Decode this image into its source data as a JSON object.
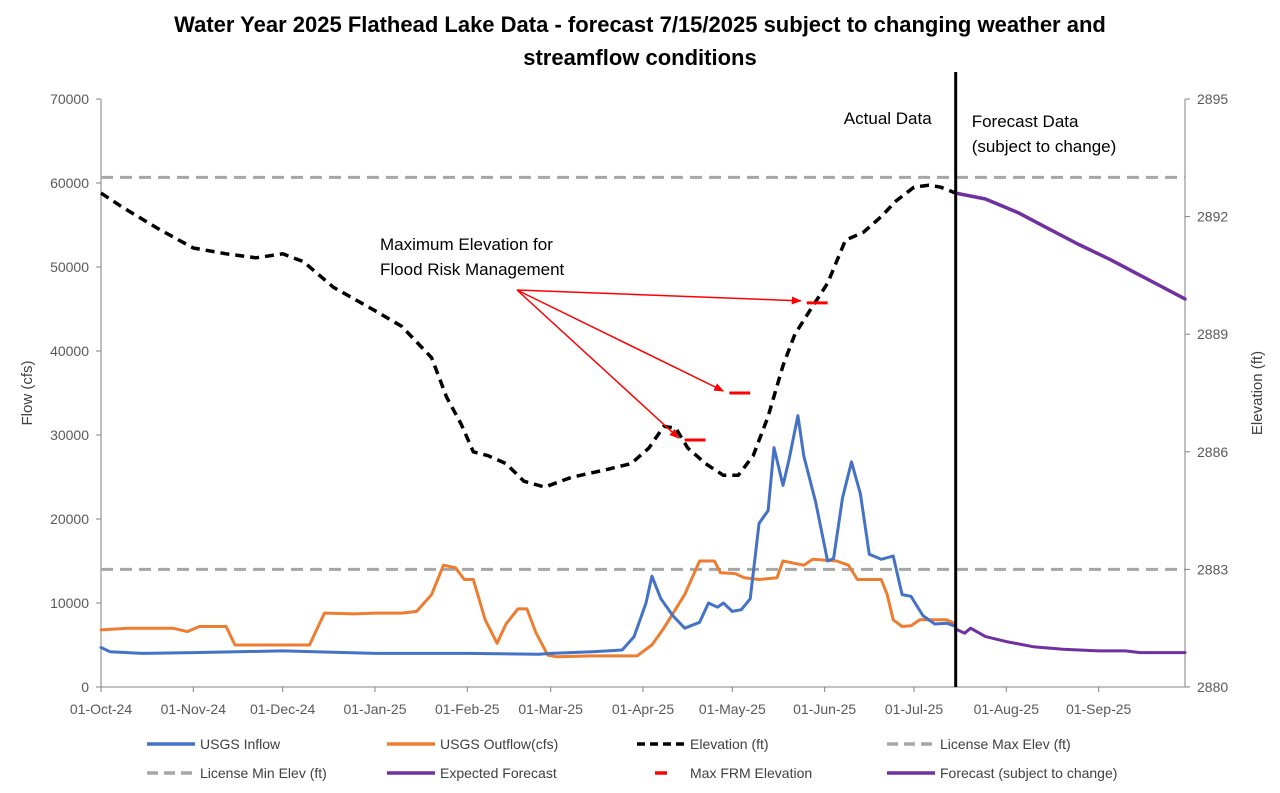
{
  "chart_data": {
    "type": "line",
    "title_line1": "Water Year 2025 Flathead Lake Data - forecast 7/15/2025 subject to changing weather and",
    "title_line2": "streamflow conditions",
    "ylabel_left": "Flow (cfs)",
    "ylabel_right": "Elevation (ft)",
    "y_left": {
      "min": 0,
      "max": 70000,
      "ticks": [
        0,
        10000,
        20000,
        30000,
        40000,
        50000,
        60000,
        70000
      ]
    },
    "y_right": {
      "min": 2880,
      "max": 2895,
      "ticks": [
        2880,
        2883,
        2886,
        2889,
        2892,
        2895
      ]
    },
    "x_range": [
      "2024-10-01",
      "2025-09-30"
    ],
    "x_ticks": [
      {
        "date": "2024-10-01",
        "label": "01-Oct-24"
      },
      {
        "date": "2024-11-01",
        "label": "01-Nov-24"
      },
      {
        "date": "2024-12-01",
        "label": "01-Dec-24"
      },
      {
        "date": "2025-01-01",
        "label": "01-Jan-25"
      },
      {
        "date": "2025-02-01",
        "label": "01-Feb-25"
      },
      {
        "date": "2025-03-01",
        "label": "01-Mar-25"
      },
      {
        "date": "2025-04-01",
        "label": "01-Apr-25"
      },
      {
        "date": "2025-05-01",
        "label": "01-May-25"
      },
      {
        "date": "2025-06-01",
        "label": "01-Jun-25"
      },
      {
        "date": "2025-07-01",
        "label": "01-Jul-25"
      },
      {
        "date": "2025-08-01",
        "label": "01-Aug-25"
      },
      {
        "date": "2025-09-01",
        "label": "01-Sep-25"
      }
    ],
    "grid": false,
    "legend_position": "bottom",
    "split_date": "2025-07-15",
    "region_labels": {
      "actual": "Actual Data",
      "forecast_line1": "Forecast Data",
      "forecast_line2": "(subject to change)"
    },
    "annotation": {
      "line1": "Maximum Elevation for",
      "line2": "Flood Risk Management"
    },
    "colors": {
      "inflow": "#4472C4",
      "outflow": "#ED7D31",
      "elevation": "#000000",
      "license": "#A6A6A6",
      "forecast": "#7030A0",
      "frm": "#FF0000"
    },
    "license_max_elev": 2893.0,
    "license_min_elev": 2883.0,
    "series": [
      {
        "key": "inflow",
        "name": "USGS Inflow",
        "axis": "left",
        "points": [
          [
            "2024-10-01",
            4700
          ],
          [
            "2024-10-04",
            4200
          ],
          [
            "2024-10-15",
            4000
          ],
          [
            "2024-11-01",
            4100
          ],
          [
            "2024-12-01",
            4300
          ],
          [
            "2025-01-01",
            4000
          ],
          [
            "2025-02-01",
            4000
          ],
          [
            "2025-02-25",
            3900
          ],
          [
            "2025-03-01",
            4000
          ],
          [
            "2025-03-15",
            4200
          ],
          [
            "2025-03-25",
            4400
          ],
          [
            "2025-03-29",
            6000
          ],
          [
            "2025-04-02",
            10000
          ],
          [
            "2025-04-04",
            13200
          ],
          [
            "2025-04-07",
            10500
          ],
          [
            "2025-04-11",
            8500
          ],
          [
            "2025-04-15",
            7000
          ],
          [
            "2025-04-20",
            7700
          ],
          [
            "2025-04-23",
            10000
          ],
          [
            "2025-04-26",
            9500
          ],
          [
            "2025-04-28",
            10000
          ],
          [
            "2025-05-01",
            9000
          ],
          [
            "2025-05-04",
            9200
          ],
          [
            "2025-05-07",
            10500
          ],
          [
            "2025-05-10",
            19500
          ],
          [
            "2025-05-13",
            21000
          ],
          [
            "2025-05-15",
            28500
          ],
          [
            "2025-05-18",
            24000
          ],
          [
            "2025-05-20",
            27000
          ],
          [
            "2025-05-23",
            32300
          ],
          [
            "2025-05-25",
            27500
          ],
          [
            "2025-05-29",
            22000
          ],
          [
            "2025-06-02",
            15000
          ],
          [
            "2025-06-04",
            15300
          ],
          [
            "2025-06-07",
            22500
          ],
          [
            "2025-06-10",
            26800
          ],
          [
            "2025-06-13",
            23000
          ],
          [
            "2025-06-16",
            15800
          ],
          [
            "2025-06-20",
            15200
          ],
          [
            "2025-06-24",
            15600
          ],
          [
            "2025-06-27",
            11000
          ],
          [
            "2025-06-30",
            10800
          ],
          [
            "2025-07-04",
            8500
          ],
          [
            "2025-07-08",
            7500
          ],
          [
            "2025-07-12",
            7600
          ],
          [
            "2025-07-15",
            7200
          ]
        ]
      },
      {
        "key": "outflow",
        "name": "USGS Outflow(cfs)",
        "axis": "left",
        "points": [
          [
            "2024-10-01",
            6800
          ],
          [
            "2024-10-10",
            7000
          ],
          [
            "2024-10-25",
            7000
          ],
          [
            "2024-10-30",
            6600
          ],
          [
            "2024-11-03",
            7200
          ],
          [
            "2024-11-12",
            7200
          ],
          [
            "2024-11-15",
            5000
          ],
          [
            "2024-11-25",
            5000
          ],
          [
            "2024-12-01",
            5000
          ],
          [
            "2024-12-10",
            5000
          ],
          [
            "2024-12-15",
            8800
          ],
          [
            "2024-12-25",
            8700
          ],
          [
            "2025-01-01",
            8800
          ],
          [
            "2025-01-10",
            8800
          ],
          [
            "2025-01-15",
            9000
          ],
          [
            "2025-01-20",
            11000
          ],
          [
            "2025-01-24",
            14500
          ],
          [
            "2025-01-28",
            14200
          ],
          [
            "2025-01-31",
            12800
          ],
          [
            "2025-02-03",
            12800
          ],
          [
            "2025-02-07",
            8000
          ],
          [
            "2025-02-11",
            5200
          ],
          [
            "2025-02-14",
            7500
          ],
          [
            "2025-02-18",
            9300
          ],
          [
            "2025-02-21",
            9300
          ],
          [
            "2025-02-24",
            6500
          ],
          [
            "2025-02-28",
            3800
          ],
          [
            "2025-03-03",
            3600
          ],
          [
            "2025-03-15",
            3700
          ],
          [
            "2025-03-30",
            3700
          ],
          [
            "2025-04-04",
            5000
          ],
          [
            "2025-04-08",
            7000
          ],
          [
            "2025-04-15",
            11000
          ],
          [
            "2025-04-20",
            15000
          ],
          [
            "2025-04-25",
            15000
          ],
          [
            "2025-04-27",
            13600
          ],
          [
            "2025-05-02",
            13500
          ],
          [
            "2025-05-05",
            13000
          ],
          [
            "2025-05-10",
            12800
          ],
          [
            "2025-05-16",
            13000
          ],
          [
            "2025-05-18",
            15000
          ],
          [
            "2025-05-25",
            14500
          ],
          [
            "2025-05-28",
            15200
          ],
          [
            "2025-06-05",
            15000
          ],
          [
            "2025-06-09",
            14500
          ],
          [
            "2025-06-12",
            12800
          ],
          [
            "2025-06-20",
            12800
          ],
          [
            "2025-06-22",
            11000
          ],
          [
            "2025-06-24",
            8000
          ],
          [
            "2025-06-27",
            7200
          ],
          [
            "2025-06-30",
            7300
          ],
          [
            "2025-07-03",
            8000
          ],
          [
            "2025-07-12",
            8000
          ],
          [
            "2025-07-15",
            7500
          ]
        ]
      },
      {
        "key": "elevation",
        "name": "Elevation (ft)",
        "axis": "right",
        "points": [
          [
            "2024-10-01",
            2892.6
          ],
          [
            "2024-10-08",
            2892.25
          ],
          [
            "2024-10-20",
            2891.7
          ],
          [
            "2024-11-01",
            2891.2
          ],
          [
            "2024-11-12",
            2891.05
          ],
          [
            "2024-11-22",
            2890.95
          ],
          [
            "2024-12-01",
            2891.05
          ],
          [
            "2024-12-08",
            2890.85
          ],
          [
            "2024-12-18",
            2890.2
          ],
          [
            "2025-01-01",
            2889.6
          ],
          [
            "2025-01-10",
            2889.2
          ],
          [
            "2025-01-20",
            2888.4
          ],
          [
            "2025-01-25",
            2887.4
          ],
          [
            "2025-01-30",
            2886.7
          ],
          [
            "2025-02-03",
            2886.0
          ],
          [
            "2025-02-08",
            2885.9
          ],
          [
            "2025-02-14",
            2885.7
          ],
          [
            "2025-02-20",
            2885.25
          ],
          [
            "2025-02-27",
            2885.1
          ],
          [
            "2025-03-08",
            2885.35
          ],
          [
            "2025-03-20",
            2885.55
          ],
          [
            "2025-03-28",
            2885.7
          ],
          [
            "2025-04-03",
            2886.1
          ],
          [
            "2025-04-08",
            2886.65
          ],
          [
            "2025-04-12",
            2886.6
          ],
          [
            "2025-04-16",
            2886.1
          ],
          [
            "2025-04-22",
            2885.7
          ],
          [
            "2025-04-28",
            2885.4
          ],
          [
            "2025-05-03",
            2885.4
          ],
          [
            "2025-05-08",
            2885.9
          ],
          [
            "2025-05-13",
            2886.9
          ],
          [
            "2025-05-18",
            2888.2
          ],
          [
            "2025-05-22",
            2889.0
          ],
          [
            "2025-05-27",
            2889.6
          ],
          [
            "2025-06-02",
            2890.3
          ],
          [
            "2025-06-08",
            2891.4
          ],
          [
            "2025-06-14",
            2891.6
          ],
          [
            "2025-06-20",
            2892.0
          ],
          [
            "2025-06-25",
            2892.4
          ],
          [
            "2025-07-01",
            2892.75
          ],
          [
            "2025-07-06",
            2892.8
          ],
          [
            "2025-07-10",
            2892.75
          ],
          [
            "2025-07-15",
            2892.6
          ]
        ]
      },
      {
        "key": "license_max",
        "name": "License Max Elev (ft)",
        "axis": "right",
        "points": [
          [
            "2024-10-01",
            2893.0
          ],
          [
            "2025-09-30",
            2893.0
          ]
        ]
      },
      {
        "key": "license_min",
        "name": "License Min Elev (ft)",
        "axis": "right",
        "points": [
          [
            "2024-10-01",
            2883.0
          ],
          [
            "2025-09-30",
            2883.0
          ]
        ]
      },
      {
        "key": "expected_forecast",
        "name": "Expected Forecast",
        "axis": "left",
        "points": [
          [
            "2025-07-15",
            6900
          ],
          [
            "2025-07-18",
            6400
          ],
          [
            "2025-07-20",
            7000
          ],
          [
            "2025-07-25",
            6000
          ],
          [
            "2025-08-01",
            5400
          ],
          [
            "2025-08-10",
            4800
          ],
          [
            "2025-08-20",
            4500
          ],
          [
            "2025-09-01",
            4300
          ],
          [
            "2025-09-10",
            4300
          ],
          [
            "2025-09-15",
            4100
          ],
          [
            "2025-09-30",
            4100
          ]
        ]
      },
      {
        "key": "max_frm",
        "name": "Max FRM Elevation",
        "axis": "right",
        "segments": [
          {
            "start": "2025-04-15",
            "end": "2025-04-22",
            "value": 2886.3
          },
          {
            "start": "2025-04-30",
            "end": "2025-05-07",
            "value": 2887.5
          },
          {
            "start": "2025-05-26",
            "end": "2025-06-02",
            "value": 2889.8
          }
        ]
      },
      {
        "key": "forecast_elev",
        "name": "Forecast (subject to change)",
        "axis": "right",
        "points": [
          [
            "2025-07-15",
            2892.6
          ],
          [
            "2025-07-25",
            2892.45
          ],
          [
            "2025-08-05",
            2892.1
          ],
          [
            "2025-08-15",
            2891.7
          ],
          [
            "2025-08-25",
            2891.3
          ],
          [
            "2025-09-05",
            2890.9
          ],
          [
            "2025-09-15",
            2890.5
          ],
          [
            "2025-09-30",
            2889.9
          ]
        ]
      }
    ],
    "legend": [
      {
        "key": "inflow",
        "style": "solid"
      },
      {
        "key": "outflow",
        "style": "solid"
      },
      {
        "key": "elevation",
        "style": "dash"
      },
      {
        "key": "license_max",
        "style": "dash"
      },
      {
        "key": "license_min",
        "style": "dash"
      },
      {
        "key": "expected_forecast",
        "style": "solid"
      },
      {
        "key": "max_frm",
        "style": "short"
      },
      {
        "key": "forecast_elev",
        "style": "solid"
      }
    ]
  }
}
